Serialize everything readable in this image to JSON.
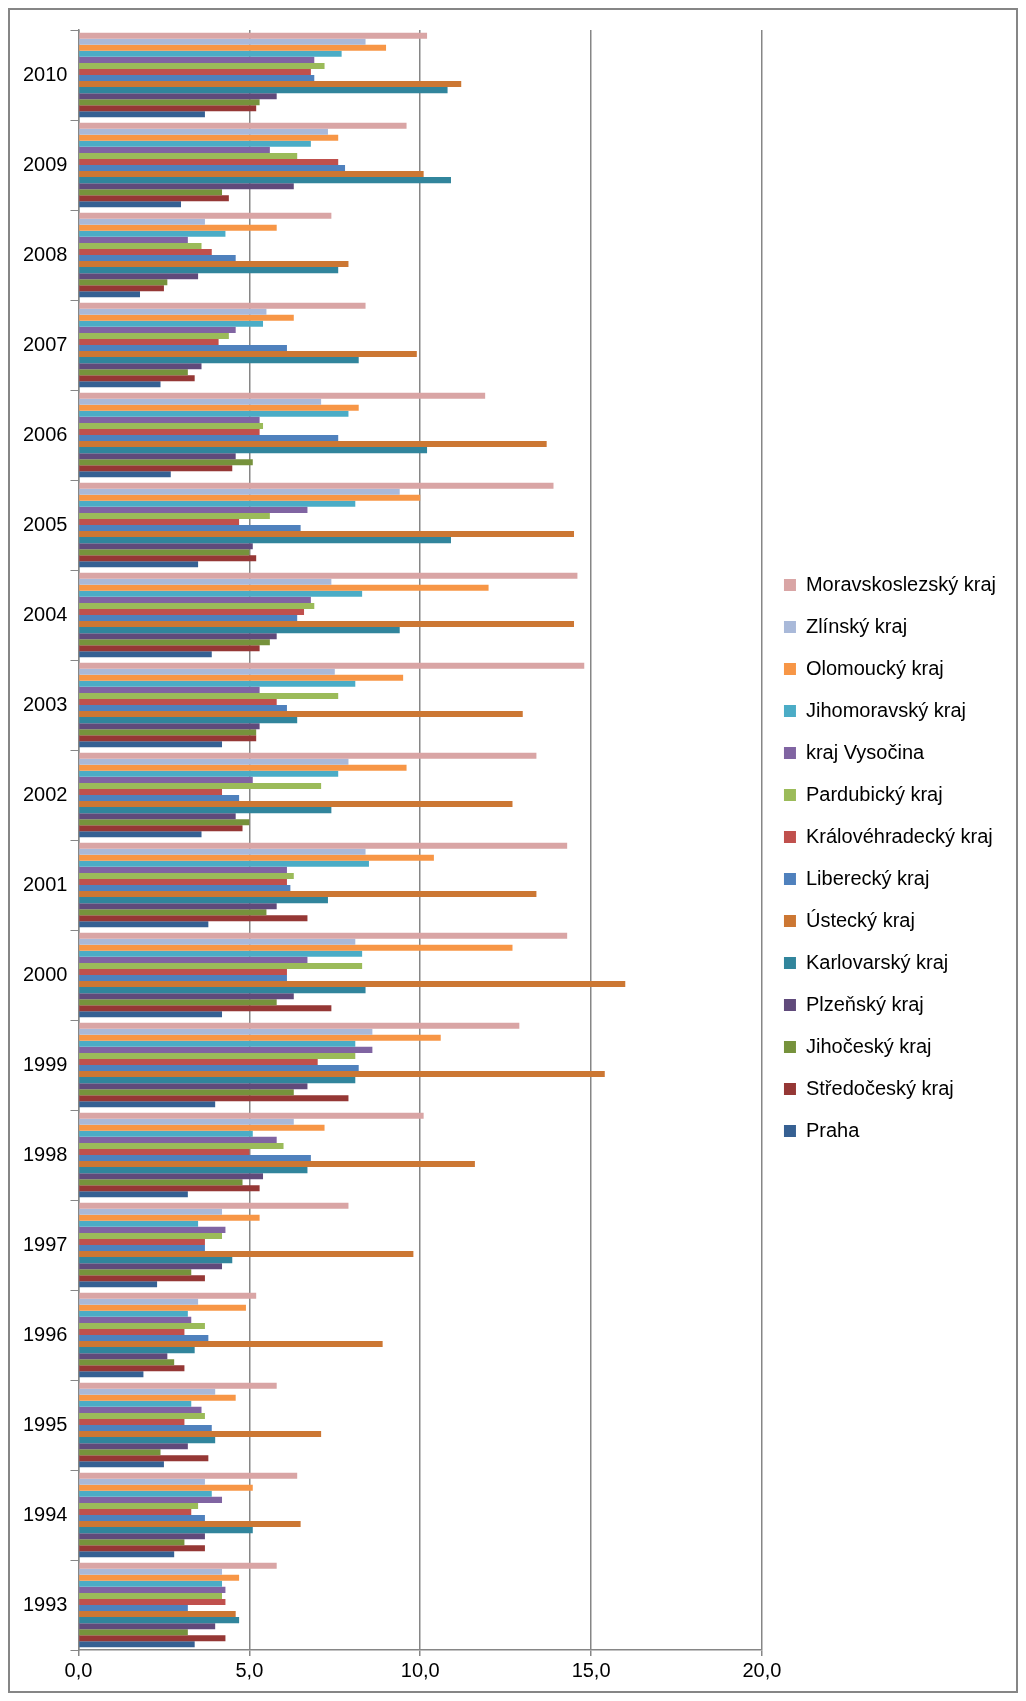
{
  "chart_data": {
    "type": "bar",
    "orientation": "horizontal",
    "categories": [
      "2010",
      "2009",
      "2008",
      "2007",
      "2006",
      "2005",
      "2004",
      "2003",
      "2002",
      "2001",
      "2000",
      "1999",
      "1998",
      "1997",
      "1996",
      "1995",
      "1994",
      "1993"
    ],
    "series": [
      {
        "name": "Moravskoslezský kraj",
        "color": "#d9a5a5",
        "values": [
          10.2,
          9.6,
          7.4,
          8.4,
          11.9,
          13.9,
          14.6,
          14.8,
          13.4,
          14.3,
          14.3,
          12.9,
          10.1,
          7.9,
          5.2,
          5.8,
          6.4,
          5.8
        ]
      },
      {
        "name": "Zlínský kraj",
        "color": "#a9b9d9",
        "values": [
          8.4,
          7.3,
          3.7,
          5.5,
          7.1,
          9.4,
          7.4,
          7.5,
          7.9,
          8.4,
          8.1,
          8.6,
          6.3,
          4.2,
          3.5,
          4.0,
          3.7,
          4.2
        ]
      },
      {
        "name": "Olomoucký kraj",
        "color": "#f79646",
        "values": [
          9.0,
          7.6,
          5.8,
          6.3,
          8.2,
          10.0,
          12.0,
          9.5,
          9.6,
          10.4,
          12.7,
          10.6,
          7.2,
          5.3,
          4.9,
          4.6,
          5.1,
          4.7
        ]
      },
      {
        "name": "Jihomoravský kraj",
        "color": "#4bacc6",
        "values": [
          7.7,
          6.8,
          4.3,
          5.4,
          7.9,
          8.1,
          8.3,
          8.1,
          7.6,
          8.5,
          8.3,
          8.1,
          5.1,
          3.5,
          3.2,
          3.3,
          3.9,
          4.2
        ]
      },
      {
        "name": "kraj Vysočina",
        "color": "#8064a2",
        "values": [
          6.9,
          5.6,
          3.2,
          4.6,
          5.3,
          6.7,
          6.8,
          5.3,
          5.1,
          6.1,
          6.7,
          8.6,
          5.8,
          4.3,
          3.3,
          3.6,
          4.2,
          4.3
        ]
      },
      {
        "name": "Pardubický kraj",
        "color": "#9bbb59",
        "values": [
          7.2,
          6.4,
          3.6,
          4.4,
          5.4,
          5.6,
          6.9,
          7.6,
          7.1,
          6.3,
          8.3,
          8.1,
          6.0,
          4.2,
          3.7,
          3.7,
          3.5,
          4.2
        ]
      },
      {
        "name": "Královéhradecký kraj",
        "color": "#c0504d",
        "values": [
          6.8,
          7.6,
          3.9,
          4.1,
          5.3,
          4.7,
          6.6,
          5.8,
          4.2,
          6.1,
          6.1,
          7.0,
          5.0,
          3.7,
          3.1,
          3.1,
          3.3,
          4.3
        ]
      },
      {
        "name": "Liberecký kraj",
        "color": "#4f81bd",
        "values": [
          6.9,
          7.8,
          4.6,
          6.1,
          7.6,
          6.5,
          6.4,
          6.1,
          4.7,
          6.2,
          6.1,
          8.2,
          6.8,
          3.7,
          3.8,
          3.9,
          3.7,
          3.2
        ]
      },
      {
        "name": "Ústecký kraj",
        "color": "#cc7733",
        "values": [
          11.2,
          10.1,
          7.9,
          9.9,
          13.7,
          14.5,
          14.5,
          13.0,
          12.7,
          13.4,
          16.0,
          15.4,
          11.6,
          9.8,
          8.9,
          7.1,
          6.5,
          4.6
        ]
      },
      {
        "name": "Karlovarský kraj",
        "color": "#31859c",
        "values": [
          10.8,
          10.9,
          7.6,
          8.2,
          10.2,
          10.9,
          9.4,
          6.4,
          7.4,
          7.3,
          8.4,
          8.1,
          6.7,
          4.5,
          3.4,
          4.0,
          5.1,
          4.7
        ]
      },
      {
        "name": "Plzeňský kraj",
        "color": "#604a7b",
        "values": [
          5.8,
          6.3,
          3.5,
          3.6,
          4.6,
          5.1,
          5.8,
          5.3,
          4.6,
          5.8,
          6.3,
          6.7,
          5.4,
          4.2,
          2.6,
          3.2,
          3.7,
          4.0
        ]
      },
      {
        "name": "Jihočeský kraj",
        "color": "#76923c",
        "values": [
          5.3,
          4.2,
          2.6,
          3.2,
          5.1,
          5.0,
          5.6,
          5.2,
          5.0,
          5.5,
          5.8,
          6.3,
          4.8,
          3.3,
          2.8,
          2.4,
          3.1,
          3.2
        ]
      },
      {
        "name": "Středočeský kraj",
        "color": "#953735",
        "values": [
          5.2,
          4.4,
          2.5,
          3.4,
          4.5,
          5.2,
          5.3,
          5.2,
          4.8,
          6.7,
          7.4,
          7.9,
          5.3,
          3.7,
          3.1,
          3.8,
          3.7,
          4.3
        ]
      },
      {
        "name": "Praha",
        "color": "#366092",
        "values": [
          3.7,
          3.0,
          1.8,
          2.4,
          2.7,
          3.5,
          3.9,
          4.2,
          3.6,
          3.8,
          4.2,
          4.0,
          3.2,
          2.3,
          1.9,
          2.5,
          2.8,
          3.4
        ]
      }
    ],
    "xlim": [
      0,
      20
    ],
    "xticks": [
      {
        "value": 0,
        "label": "0,0"
      },
      {
        "value": 5,
        "label": "5,0"
      },
      {
        "value": 10,
        "label": "10,0"
      },
      {
        "value": 15,
        "label": "15,0"
      },
      {
        "value": 20,
        "label": "20,0"
      }
    ],
    "grid": "x",
    "legend": "right"
  }
}
